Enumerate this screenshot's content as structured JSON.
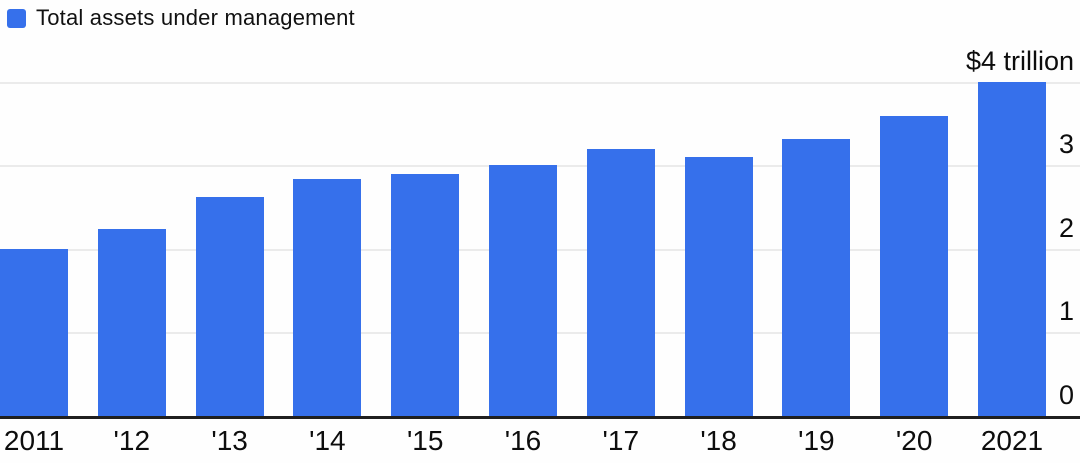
{
  "legend": {
    "label": "Total assets under management",
    "swatch_icon": "blue-square-swatch"
  },
  "colors": {
    "bar": "#3670eb",
    "baseline": "#1f1f1f",
    "gridline": "#ebebeb",
    "text": "#0d0d0d",
    "background": "#fefefe"
  },
  "chart_data": {
    "type": "bar",
    "title": "Total assets under management",
    "unit": "USD trillions",
    "categories": [
      "2011",
      "'12",
      "'13",
      "'14",
      "'15",
      "'16",
      "'17",
      "'18",
      "'19",
      "'20",
      "2021"
    ],
    "values": [
      2.01,
      2.25,
      2.63,
      2.85,
      2.91,
      3.02,
      3.21,
      3.11,
      3.32,
      3.6,
      4.01
    ],
    "xlabel": "",
    "ylabel": "",
    "ylim": [
      0,
      4
    ],
    "yticks": [
      {
        "value": 0,
        "label": "0"
      },
      {
        "value": 1,
        "label": "1"
      },
      {
        "value": 2,
        "label": "2"
      },
      {
        "value": 3,
        "label": "3"
      },
      {
        "value": 4,
        "label": "$4 trillion"
      }
    ],
    "grid": "horizontal",
    "legend_position": "top-left",
    "y_axis_side": "right"
  }
}
